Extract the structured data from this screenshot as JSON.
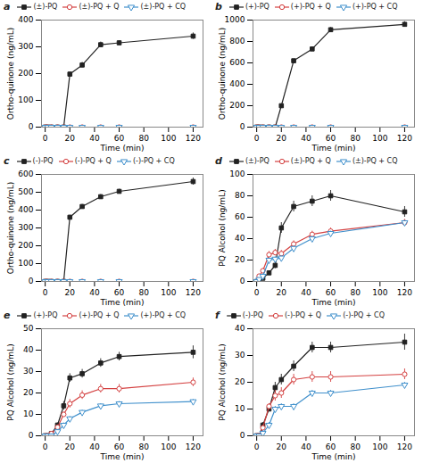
{
  "chart_data": [
    {
      "type": "line",
      "title": "a",
      "xlabel": "Time (min)",
      "ylabel": "Ortho-quinone (ng/mL)",
      "x": [
        0,
        2,
        5,
        10,
        15,
        20,
        30,
        45,
        60,
        120
      ],
      "xlim": [
        -3,
        128
      ],
      "xticks": [
        0,
        20,
        40,
        60,
        80,
        100,
        120
      ],
      "ylim": [
        0,
        400
      ],
      "yticks": [
        0,
        100,
        200,
        300,
        400
      ],
      "legend": "top",
      "series": [
        {
          "name": "(±)-PQ",
          "color": "#222222",
          "marker": "square",
          "values": [
            0,
            0,
            0,
            0,
            0,
            198,
            232,
            308,
            315,
            340
          ],
          "yerr": [
            0,
            0,
            0,
            0,
            0,
            8,
            10,
            10,
            8,
            12
          ]
        },
        {
          "name": "(±)-PQ + Q",
          "color": "#d44040",
          "marker": "circle-open",
          "values": [
            0,
            0,
            0,
            0,
            0,
            0,
            0,
            0,
            0,
            0
          ],
          "yerr": [
            0,
            0,
            0,
            0,
            0,
            0,
            0,
            0,
            0,
            0
          ]
        },
        {
          "name": "(±)-PQ + CQ",
          "color": "#4090cc",
          "marker": "triangle-down-open",
          "values": [
            0,
            0,
            0,
            0,
            0,
            0,
            0,
            0,
            0,
            0
          ],
          "yerr": [
            0,
            0,
            0,
            0,
            0,
            0,
            0,
            0,
            0,
            0
          ]
        }
      ]
    },
    {
      "type": "line",
      "title": "b",
      "xlabel": "Time (min)",
      "ylabel": "Ortho-quinone (ng/mL)",
      "x": [
        0,
        2,
        5,
        10,
        15,
        20,
        30,
        45,
        60,
        120
      ],
      "xlim": [
        -3,
        128
      ],
      "xticks": [
        0,
        20,
        40,
        60,
        80,
        100,
        120
      ],
      "ylim": [
        0,
        1000
      ],
      "yticks": [
        0,
        200,
        400,
        600,
        800,
        1000
      ],
      "legend": "top",
      "series": [
        {
          "name": "(+)-PQ",
          "color": "#222222",
          "marker": "square",
          "values": [
            0,
            0,
            0,
            0,
            0,
            200,
            620,
            730,
            910,
            960
          ],
          "yerr": [
            0,
            0,
            0,
            0,
            0,
            10,
            15,
            20,
            20,
            25
          ]
        },
        {
          "name": "(+)-PQ + Q",
          "color": "#d44040",
          "marker": "circle-open",
          "values": [
            0,
            0,
            0,
            0,
            0,
            0,
            0,
            0,
            0,
            0
          ],
          "yerr": [
            0,
            0,
            0,
            0,
            0,
            0,
            0,
            0,
            0,
            0
          ]
        },
        {
          "name": "(+)-PQ + CQ",
          "color": "#4090cc",
          "marker": "triangle-down-open",
          "values": [
            0,
            0,
            0,
            0,
            0,
            0,
            0,
            0,
            0,
            0
          ],
          "yerr": [
            0,
            0,
            0,
            0,
            0,
            0,
            0,
            0,
            0,
            0
          ]
        }
      ]
    },
    {
      "type": "line",
      "title": "c",
      "xlabel": "Time (min)",
      "ylabel": "Ortho-quinone (ng/mL)",
      "x": [
        0,
        2,
        5,
        10,
        15,
        20,
        30,
        45,
        60,
        120
      ],
      "xlim": [
        -3,
        128
      ],
      "xticks": [
        0,
        20,
        40,
        60,
        80,
        100,
        120
      ],
      "ylim": [
        0,
        600
      ],
      "yticks": [
        0,
        100,
        200,
        300,
        400,
        500,
        600
      ],
      "legend": "top",
      "series": [
        {
          "name": "(-)-PQ",
          "color": "#222222",
          "marker": "square",
          "values": [
            0,
            0,
            0,
            0,
            0,
            360,
            420,
            475,
            505,
            560
          ],
          "yerr": [
            0,
            0,
            0,
            0,
            0,
            12,
            12,
            12,
            12,
            20
          ]
        },
        {
          "name": "(-)-PQ + Q",
          "color": "#d44040",
          "marker": "circle-open",
          "values": [
            0,
            0,
            0,
            0,
            0,
            0,
            0,
            0,
            0,
            0
          ],
          "yerr": [
            0,
            0,
            0,
            0,
            0,
            0,
            0,
            0,
            0,
            0
          ]
        },
        {
          "name": "(-)-PQ + CQ",
          "color": "#4090cc",
          "marker": "triangle-down-open",
          "values": [
            0,
            0,
            0,
            0,
            0,
            0,
            0,
            0,
            0,
            0
          ],
          "yerr": [
            0,
            0,
            0,
            0,
            0,
            0,
            0,
            0,
            0,
            0
          ]
        }
      ]
    },
    {
      "type": "line",
      "title": "d",
      "xlabel": "Time (min)",
      "ylabel": "PQ Alcohol (ng/mL)",
      "x": [
        0,
        2,
        5,
        10,
        15,
        20,
        30,
        45,
        60,
        120
      ],
      "xlim": [
        -3,
        128
      ],
      "xticks": [
        0,
        20,
        40,
        60,
        80,
        100,
        120
      ],
      "ylim": [
        0,
        100
      ],
      "yticks": [
        0,
        20,
        40,
        60,
        80,
        100
      ],
      "legend": "top",
      "series": [
        {
          "name": "(±)-PQ",
          "color": "#222222",
          "marker": "square",
          "values": [
            0,
            1,
            3,
            8,
            15,
            50,
            70,
            75,
            80,
            65
          ],
          "yerr": [
            0,
            1,
            1,
            2,
            3,
            5,
            5,
            5,
            5,
            5
          ]
        },
        {
          "name": "(±)-PQ + Q",
          "color": "#d44040",
          "marker": "circle-open",
          "values": [
            0,
            5,
            10,
            25,
            27,
            26,
            35,
            44,
            47,
            55
          ],
          "yerr": [
            0,
            1,
            2,
            3,
            3,
            3,
            3,
            3,
            3,
            3
          ]
        },
        {
          "name": "(±)-PQ + CQ",
          "color": "#4090cc",
          "marker": "triangle-down-open",
          "values": [
            0,
            2,
            5,
            20,
            21,
            22,
            31,
            40,
            45,
            55
          ],
          "yerr": [
            0,
            1,
            2,
            2,
            2,
            2,
            2,
            2,
            2,
            2
          ]
        }
      ]
    },
    {
      "type": "line",
      "title": "e",
      "xlabel": "Time (min)",
      "ylabel": "PQ Alcohol (ng/mL)",
      "x": [
        0,
        2,
        5,
        10,
        15,
        20,
        30,
        45,
        60,
        120
      ],
      "xlim": [
        -3,
        128
      ],
      "xticks": [
        0,
        20,
        40,
        60,
        80,
        100,
        120
      ],
      "ylim": [
        0,
        50
      ],
      "yticks": [
        0,
        10,
        20,
        30,
        40,
        50
      ],
      "legend": "top",
      "series": [
        {
          "name": "(+)-PQ",
          "color": "#222222",
          "marker": "square",
          "values": [
            0,
            0,
            1,
            5,
            14,
            27,
            29,
            34,
            37,
            39
          ],
          "yerr": [
            0,
            0,
            1,
            1,
            2,
            2,
            2,
            2,
            2,
            3
          ]
        },
        {
          "name": "(+)-PQ + Q",
          "color": "#d44040",
          "marker": "circle-open",
          "values": [
            0,
            0,
            1,
            4,
            10,
            15,
            19,
            22,
            22,
            25
          ],
          "yerr": [
            0,
            0,
            1,
            1,
            1,
            2,
            2,
            2,
            2,
            2
          ]
        },
        {
          "name": "(+)-PQ + CQ",
          "color": "#4090cc",
          "marker": "triangle-down-open",
          "values": [
            0,
            0,
            0,
            2,
            5,
            8,
            11,
            14,
            15,
            16
          ],
          "yerr": [
            0,
            0,
            0,
            1,
            1,
            1,
            1,
            1,
            1,
            1
          ]
        }
      ]
    },
    {
      "type": "line",
      "title": "f",
      "xlabel": "Time (min)",
      "ylabel": "PQ Alcohol (ng/mL)",
      "x": [
        0,
        2,
        5,
        10,
        15,
        20,
        30,
        45,
        60,
        120
      ],
      "xlim": [
        -3,
        128
      ],
      "xticks": [
        0,
        20,
        40,
        60,
        80,
        100,
        120
      ],
      "ylim": [
        0,
        40
      ],
      "yticks": [
        0,
        10,
        20,
        30,
        40
      ],
      "legend": "top",
      "series": [
        {
          "name": "(-)-PQ",
          "color": "#222222",
          "marker": "square",
          "values": [
            0,
            0,
            4,
            10,
            18,
            21,
            26,
            33,
            33,
            35
          ],
          "yerr": [
            0,
            0,
            1,
            1,
            2,
            2,
            2,
            2,
            2,
            3
          ]
        },
        {
          "name": "(-)-PQ + Q",
          "color": "#d44040",
          "marker": "circle-open",
          "values": [
            0,
            0,
            3,
            11,
            15,
            16,
            21,
            22,
            22,
            23
          ],
          "yerr": [
            0,
            0,
            1,
            1,
            2,
            2,
            2,
            2,
            2,
            2
          ]
        },
        {
          "name": "(-)-PQ + CQ",
          "color": "#4090cc",
          "marker": "triangle-down-open",
          "values": [
            0,
            0,
            1,
            4,
            10,
            11,
            11,
            16,
            16,
            19
          ],
          "yerr": [
            0,
            0,
            1,
            1,
            1,
            1,
            1,
            1,
            1,
            1
          ]
        }
      ]
    }
  ]
}
